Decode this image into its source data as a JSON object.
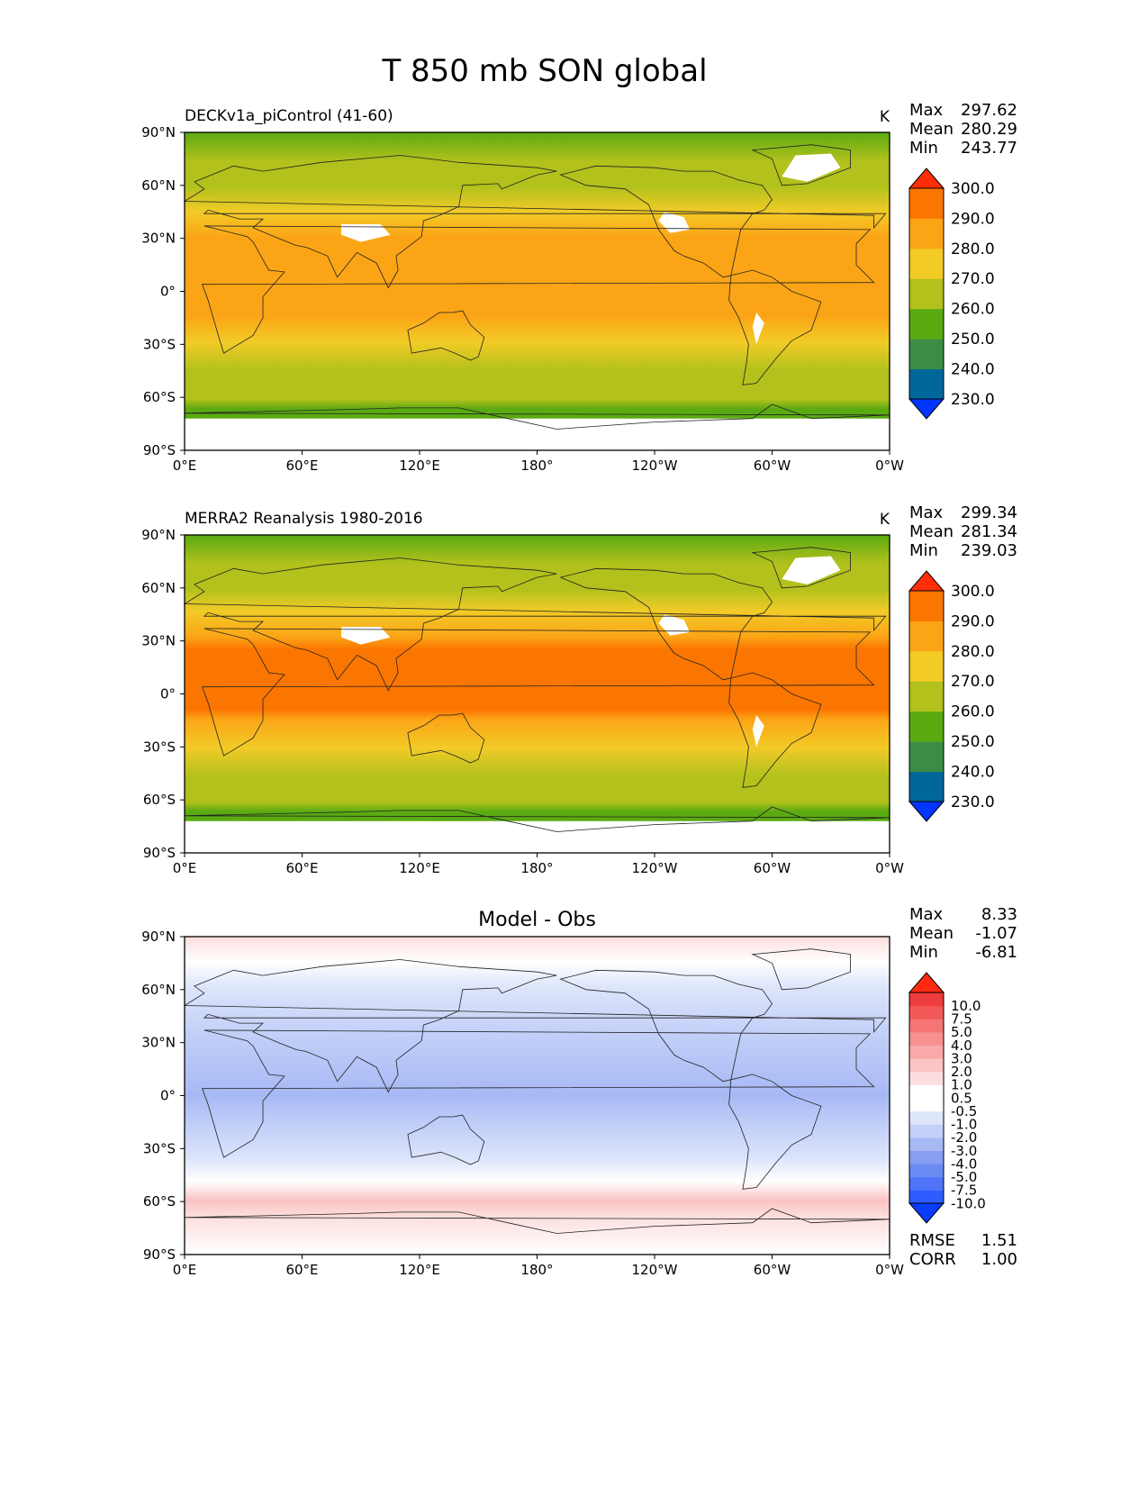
{
  "title": "T 850 mb SON global",
  "panels": [
    {
      "subtitle": "DECKv1a_piControl (41-60)",
      "center_title": "",
      "units": "K",
      "stats": [
        {
          "label": "Max",
          "value": "297.62"
        },
        {
          "label": "Mean",
          "value": "280.29"
        },
        {
          "label": "Min",
          "value": "243.77"
        }
      ],
      "colorbar": {
        "colors": [
          "#0036ff",
          "#00679a",
          "#3d8c45",
          "#5aaa12",
          "#b2c11c",
          "#f2cb27",
          "#fba516",
          "#fb7601",
          "#ff2e08"
        ],
        "labels": [
          "230.0",
          "240.0",
          "250.0",
          "260.0",
          "270.0",
          "280.0",
          "290.0",
          "300.0"
        ]
      },
      "extra_stats": []
    },
    {
      "subtitle": "MERRA2 Reanalysis 1980-2016",
      "center_title": "",
      "units": "K",
      "stats": [
        {
          "label": "Max",
          "value": "299.34"
        },
        {
          "label": "Mean",
          "value": "281.34"
        },
        {
          "label": "Min",
          "value": "239.03"
        }
      ],
      "colorbar": {
        "colors": [
          "#0036ff",
          "#00679a",
          "#3d8c45",
          "#5aaa12",
          "#b2c11c",
          "#f2cb27",
          "#fba516",
          "#fb7601",
          "#ff2e08"
        ],
        "labels": [
          "230.0",
          "240.0",
          "250.0",
          "260.0",
          "270.0",
          "280.0",
          "290.0",
          "300.0"
        ]
      },
      "extra_stats": []
    },
    {
      "subtitle": "",
      "center_title": "Model - Obs",
      "units": "",
      "stats": [
        {
          "label": "Max",
          "value": "8.33"
        },
        {
          "label": "Mean",
          "value": "-1.07"
        },
        {
          "label": "Min",
          "value": "-6.81"
        }
      ],
      "colorbar": {
        "colors": [
          "#0a3cff",
          "#2f5cff",
          "#4f74f7",
          "#6a8af4",
          "#879ef2",
          "#a7b9f5",
          "#c3d0f8",
          "#dde5fb",
          "#ffffff",
          "#ffffff",
          "#fddede",
          "#fbc3c3",
          "#f9a9a9",
          "#f79090",
          "#f57474",
          "#f25858",
          "#ef3c3c",
          "#ff2a10"
        ],
        "labels": [
          "-10.0",
          "-7.5",
          "-5.0",
          "-4.0",
          "-3.0",
          "-2.0",
          "-1.0",
          "-0.5",
          "0.5",
          "1.0",
          "2.0",
          "3.0",
          "4.0",
          "5.0",
          "7.5",
          "10.0"
        ]
      },
      "extra_stats": [
        {
          "label": "RMSE",
          "value": "1.51"
        },
        {
          "label": "CORR",
          "value": "1.00"
        }
      ]
    }
  ],
  "axes": {
    "x_ticks": [
      "0°E",
      "60°E",
      "120°E",
      "180°",
      "120°W",
      "60°W",
      "0°W"
    ],
    "y_ticks": [
      "90°N",
      "60°N",
      "30°N",
      "0°",
      "30°S",
      "60°S",
      "90°S"
    ]
  }
}
